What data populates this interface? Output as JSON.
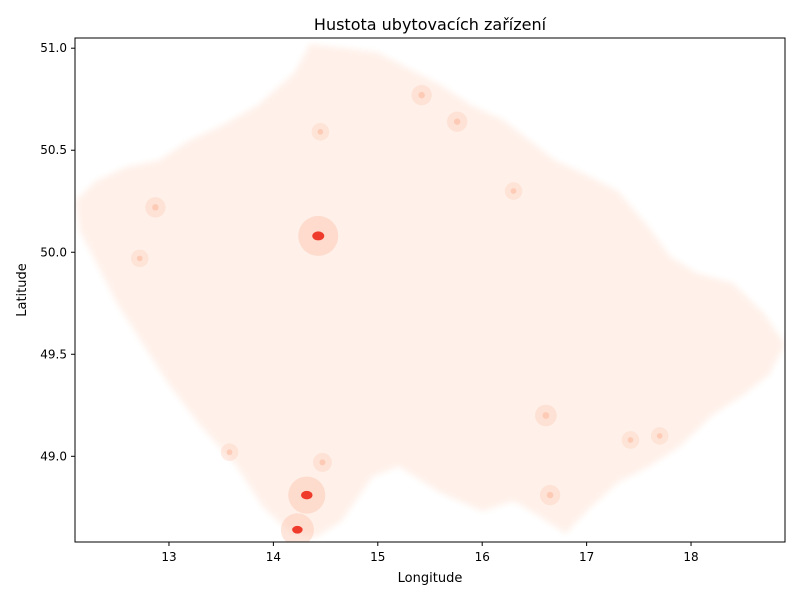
{
  "chart_data": {
    "type": "heatmap",
    "title": "Hustota ubytovacích zařízení",
    "xlabel": "Longitude",
    "ylabel": "Latitude",
    "xlim": [
      12.1,
      18.9
    ],
    "ylim": [
      48.58,
      51.05
    ],
    "xticks": [
      13,
      14,
      15,
      16,
      17,
      18
    ],
    "yticks": [
      49.0,
      49.5,
      50.0,
      50.5,
      51.0
    ],
    "xtick_labels": [
      "13",
      "14",
      "15",
      "16",
      "17",
      "18"
    ],
    "ytick_labels": [
      "49.0",
      "49.5",
      "50.0",
      "50.5",
      "51.0"
    ],
    "grid": false,
    "colormap": "Reds",
    "colors": {
      "low": "#fff0e9",
      "mid": "#fcc1a8",
      "high": "#ef3b2c"
    },
    "density_points": [
      {
        "lon": 14.43,
        "lat": 50.08,
        "level": 1.0
      },
      {
        "lon": 14.32,
        "lat": 48.81,
        "level": 0.9
      },
      {
        "lon": 14.23,
        "lat": 48.64,
        "level": 0.75
      },
      {
        "lon": 16.61,
        "lat": 49.2,
        "level": 0.35
      },
      {
        "lon": 15.42,
        "lat": 50.77,
        "level": 0.3
      },
      {
        "lon": 15.76,
        "lat": 50.64,
        "level": 0.3
      },
      {
        "lon": 12.87,
        "lat": 50.22,
        "level": 0.3
      },
      {
        "lon": 16.65,
        "lat": 48.81,
        "level": 0.3
      },
      {
        "lon": 14.47,
        "lat": 48.97,
        "level": 0.25
      },
      {
        "lon": 17.7,
        "lat": 49.1,
        "level": 0.2
      },
      {
        "lon": 17.42,
        "lat": 49.08,
        "level": 0.2
      },
      {
        "lon": 16.3,
        "lat": 50.3,
        "level": 0.2
      },
      {
        "lon": 13.58,
        "lat": 49.02,
        "level": 0.2
      },
      {
        "lon": 12.72,
        "lat": 49.97,
        "level": 0.2
      },
      {
        "lon": 14.45,
        "lat": 50.59,
        "level": 0.2
      }
    ]
  }
}
